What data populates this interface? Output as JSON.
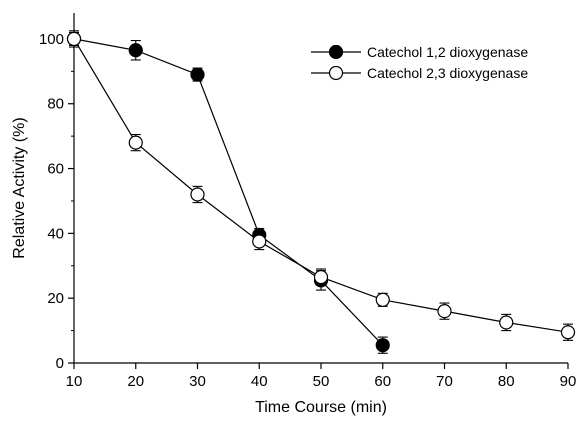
{
  "chart_data": {
    "type": "line",
    "xlabel": "Time Course (min)",
    "ylabel": "Relative Activity (%)",
    "xlim": [
      10,
      90
    ],
    "ylim": [
      0,
      108
    ],
    "xticks": [
      10,
      20,
      30,
      40,
      50,
      60,
      70,
      80,
      90
    ],
    "yticks": [
      0,
      20,
      40,
      60,
      80,
      100
    ],
    "grid": false,
    "legend_position": "top-right",
    "series": [
      {
        "name": "Catechol 1,2 dioxygenase",
        "marker": "filled-circle",
        "color": "#000000",
        "x": [
          10,
          20,
          30,
          40,
          50,
          60
        ],
        "y": [
          100,
          96.5,
          89,
          39.5,
          25.5,
          5.5
        ],
        "error": [
          2.5,
          3,
          2,
          2,
          3,
          2.5
        ]
      },
      {
        "name": "Catechol 2,3 dioxygenase",
        "marker": "open-circle",
        "color": "#000000",
        "x": [
          10,
          20,
          30,
          40,
          50,
          60,
          70,
          80,
          90
        ],
        "y": [
          100,
          68,
          52,
          37.5,
          26.5,
          19.5,
          16,
          12.5,
          9.5
        ],
        "error": [
          2,
          2.5,
          2.5,
          2.5,
          2.5,
          2,
          2.5,
          2.5,
          2.5
        ]
      }
    ]
  }
}
